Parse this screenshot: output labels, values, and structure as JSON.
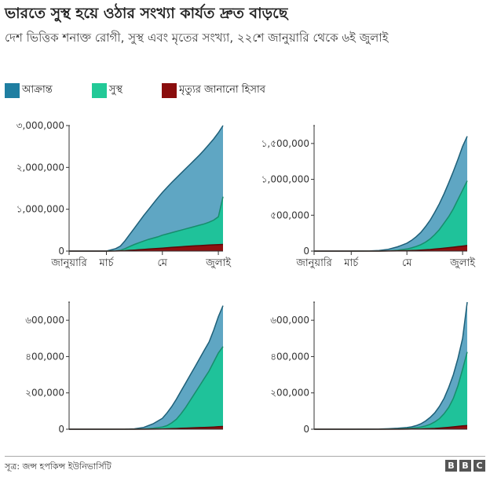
{
  "title": "ভারতে সুস্থ হয়ে ওঠার সংখ্যা কার্যত দ্রুত বাড়ছে",
  "subtitle": "দেশ ভিত্তিক শনাক্ত রোগী, সুস্থ এবং মৃতের সংখ্যা, ২২শে জানুয়ারি থেকে ৬ই জুলাই",
  "legend": [
    {
      "label": "আক্রান্ত",
      "color": "#1f7ea1"
    },
    {
      "label": "সুস্থ",
      "color": "#22c997"
    },
    {
      "label": "মৃত্যুর জানানো হিসাব",
      "color": "#8a0d0d"
    }
  ],
  "source": "সূত্র: জন্স হপকিন্স ইউনিভার্সিটি",
  "logo": [
    "B",
    "B",
    "C"
  ],
  "chart_data": [
    {
      "type": "area",
      "x": [
        0,
        10,
        20,
        30,
        40,
        50,
        55,
        60,
        65,
        70,
        75,
        80,
        85,
        90,
        95,
        100,
        105,
        110,
        115,
        120,
        125,
        130,
        135,
        140,
        145,
        150,
        155,
        160,
        165
      ],
      "xticks": [
        {
          "x": 0,
          "label": "জানুয়ারি"
        },
        {
          "x": 40,
          "label": "মার্চ"
        },
        {
          "x": 100,
          "label": "মে"
        },
        {
          "x": 160,
          "label": "জুলাই"
        }
      ],
      "ylim": [
        0,
        3000000
      ],
      "yticks": [
        {
          "v": 0,
          "label": "0"
        },
        {
          "v": 1000000,
          "label": "১,000,000"
        },
        {
          "v": 2000000,
          "label": "২,000,000"
        },
        {
          "v": 3000000,
          "label": "৩,000,000"
        }
      ],
      "series": [
        {
          "key": "confirmed",
          "values": [
            0,
            0,
            0,
            0,
            0,
            60000,
            120000,
            250000,
            400000,
            550000,
            700000,
            850000,
            990000,
            1130000,
            1270000,
            1400000,
            1520000,
            1640000,
            1750000,
            1860000,
            1970000,
            2080000,
            2190000,
            2300000,
            2420000,
            2550000,
            2680000,
            2830000,
            3000000
          ]
        },
        {
          "key": "recovered",
          "values": [
            0,
            0,
            0,
            0,
            0,
            5000,
            20000,
            60000,
            110000,
            160000,
            200000,
            240000,
            280000,
            310000,
            340000,
            380000,
            410000,
            440000,
            470000,
            500000,
            530000,
            560000,
            590000,
            620000,
            650000,
            690000,
            740000,
            820000,
            1300000
          ]
        },
        {
          "key": "deaths",
          "values": [
            0,
            0,
            0,
            0,
            0,
            1000,
            5000,
            10000,
            18000,
            25000,
            32000,
            40000,
            48000,
            56000,
            64000,
            72000,
            80000,
            88000,
            96000,
            104000,
            112000,
            120000,
            126000,
            132000,
            138000,
            144000,
            150000,
            155000,
            160000
          ]
        }
      ]
    },
    {
      "type": "area",
      "x": [
        0,
        40,
        60,
        70,
        80,
        90,
        100,
        105,
        110,
        115,
        120,
        125,
        130,
        135,
        140,
        145,
        150,
        155,
        160,
        165
      ],
      "xticks": [
        {
          "x": 0,
          "label": "জানুয়ারি"
        },
        {
          "x": 40,
          "label": "মার্চ"
        },
        {
          "x": 100,
          "label": "মে"
        },
        {
          "x": 160,
          "label": "জুলাই"
        }
      ],
      "ylim": [
        0,
        1750000
      ],
      "yticks": [
        {
          "v": 0,
          "label": "0"
        },
        {
          "v": 500000,
          "label": "৫00,000"
        },
        {
          "v": 1000000,
          "label": "১,000,000"
        },
        {
          "v": 1500000,
          "label": "১,৫00,000"
        }
      ],
      "series": [
        {
          "key": "confirmed",
          "values": [
            0,
            0,
            2000,
            8000,
            25000,
            60000,
            110000,
            150000,
            200000,
            260000,
            340000,
            430000,
            540000,
            660000,
            800000,
            950000,
            1110000,
            1280000,
            1460000,
            1600000
          ]
        },
        {
          "key": "recovered",
          "values": [
            0,
            0,
            0,
            500,
            3000,
            12000,
            30000,
            45000,
            65000,
            90000,
            125000,
            170000,
            230000,
            300000,
            390000,
            480000,
            590000,
            720000,
            850000,
            980000
          ]
        },
        {
          "key": "deaths",
          "values": [
            0,
            0,
            0,
            100,
            1000,
            3000,
            6000,
            8000,
            10000,
            13000,
            17000,
            22000,
            28000,
            34000,
            41000,
            48000,
            55000,
            62000,
            70000,
            78000
          ]
        }
      ]
    },
    {
      "type": "area",
      "x": [
        0,
        40,
        60,
        70,
        80,
        90,
        100,
        105,
        110,
        115,
        120,
        125,
        130,
        135,
        140,
        145,
        150,
        155,
        160,
        165
      ],
      "ylim": [
        0,
        700000
      ],
      "yticks": [
        {
          "v": 0,
          "label": "0"
        },
        {
          "v": 200000,
          "label": "২00,000"
        },
        {
          "v": 400000,
          "label": "৪00,000"
        },
        {
          "v": 600000,
          "label": "৬00,000"
        }
      ],
      "series": [
        {
          "key": "confirmed",
          "values": [
            0,
            0,
            500,
            2000,
            10000,
            30000,
            60000,
            90000,
            125000,
            165000,
            210000,
            255000,
            300000,
            345000,
            390000,
            435000,
            480000,
            545000,
            620000,
            680000
          ]
        },
        {
          "key": "recovered",
          "values": [
            0,
            0,
            0,
            200,
            1500,
            5000,
            12000,
            20000,
            35000,
            55000,
            85000,
            120000,
            160000,
            200000,
            240000,
            280000,
            320000,
            370000,
            420000,
            455000
          ]
        },
        {
          "key": "deaths",
          "values": [
            0,
            0,
            0,
            0,
            100,
            500,
            1200,
            2000,
            3000,
            4000,
            5000,
            6000,
            7000,
            8000,
            9000,
            10000,
            11000,
            12000,
            14000,
            15000
          ]
        }
      ]
    },
    {
      "type": "area",
      "x": [
        0,
        40,
        60,
        70,
        80,
        90,
        100,
        105,
        110,
        115,
        120,
        125,
        130,
        135,
        140,
        145,
        150,
        155,
        160,
        165
      ],
      "ylim": [
        0,
        700000
      ],
      "yticks": [
        {
          "v": 0,
          "label": "0"
        },
        {
          "v": 200000,
          "label": "২00,000"
        },
        {
          "v": 400000,
          "label": "৪00,000"
        },
        {
          "v": 600000,
          "label": "৬00,000"
        }
      ],
      "series": [
        {
          "key": "confirmed",
          "values": [
            0,
            0,
            500,
            1000,
            2500,
            5000,
            9000,
            13000,
            20000,
            30000,
            45000,
            65000,
            90000,
            125000,
            170000,
            230000,
            300000,
            390000,
            500000,
            700000
          ]
        },
        {
          "key": "recovered",
          "values": [
            0,
            0,
            0,
            100,
            500,
            1500,
            3000,
            5000,
            8000,
            12000,
            18000,
            27000,
            40000,
            58000,
            85000,
            120000,
            170000,
            240000,
            330000,
            425000
          ]
        },
        {
          "key": "deaths",
          "values": [
            0,
            0,
            0,
            0,
            50,
            200,
            500,
            800,
            1200,
            1700,
            2400,
            3300,
            4500,
            6000,
            8000,
            10500,
            13000,
            15500,
            18000,
            20000
          ]
        }
      ]
    }
  ]
}
